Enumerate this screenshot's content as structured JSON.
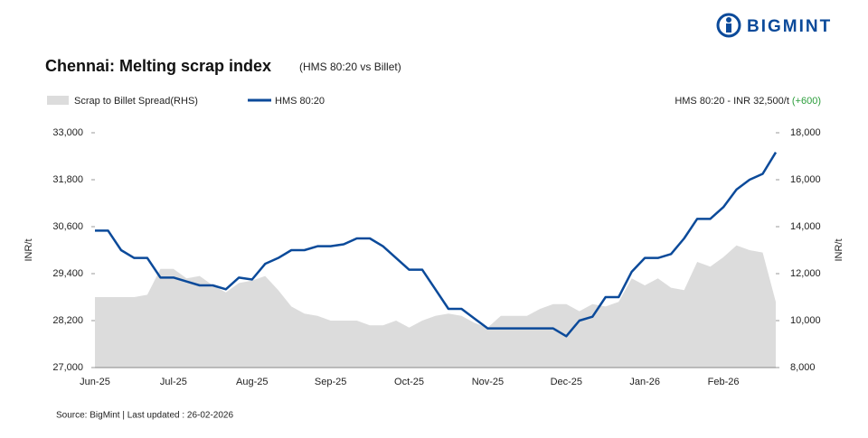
{
  "brand": "BIGMINT",
  "chart_data": {
    "type": "line",
    "title": "Chennai: Melting scrap index",
    "subtitle": "(HMS 80:20 vs Billet)",
    "annotation": "HMS 80:20 - INR 32,500/t",
    "annotation_change": "(+600)",
    "y_label": "INR/t",
    "y2_label": "INR/t",
    "source": "Source: BigMint | Last updated : 26-02-2026",
    "categories": [
      "Jun-25",
      null,
      null,
      null,
      null,
      null,
      "Jul-25",
      null,
      null,
      null,
      null,
      null,
      "Aug-25",
      null,
      null,
      null,
      null,
      null,
      "Sep-25",
      null,
      null,
      null,
      null,
      null,
      "Oct-25",
      null,
      null,
      null,
      null,
      null,
      "Nov-25",
      null,
      null,
      null,
      null,
      null,
      "Dec-25",
      null,
      null,
      null,
      null,
      null,
      "Jan-26",
      null,
      null,
      null,
      null,
      null,
      "Feb-26",
      null,
      null,
      null,
      null
    ],
    "series": [
      {
        "name": "Scrap to Billet Spread(RHS)",
        "color": "#dcdcdc",
        "axis": "y2",
        "kind": "area",
        "values": [
          11000,
          11000,
          11000,
          11000,
          11100,
          12200,
          12200,
          11800,
          11900,
          11500,
          11200,
          11600,
          11700,
          11900,
          11300,
          10600,
          10300,
          10200,
          10000,
          10000,
          10000,
          9800,
          9800,
          10000,
          9700,
          10000,
          10200,
          10300,
          10200,
          9900,
          9700,
          10200,
          10200,
          10200,
          10500,
          10700,
          10700,
          10400,
          10700,
          10600,
          10800,
          11800,
          11500,
          11800,
          11400,
          11300,
          12500,
          12300,
          12700,
          13200,
          13000,
          12900,
          10800
        ]
      },
      {
        "name": "HMS 80:20",
        "color": "#0b4a9a",
        "kind": "line",
        "values": [
          30500,
          30500,
          30000,
          29800,
          29800,
          29300,
          29300,
          29200,
          29100,
          29100,
          29000,
          29300,
          29250,
          29650,
          29800,
          30000,
          30000,
          30100,
          30100,
          30150,
          30300,
          30300,
          30100,
          29800,
          29500,
          29500,
          29000,
          28500,
          28500,
          28250,
          28000,
          28000,
          28000,
          28000,
          28000,
          28000,
          27800,
          28200,
          28300,
          28800,
          28800,
          29450,
          29800,
          29800,
          29900,
          30300,
          30800,
          30800,
          31100,
          31550,
          31800,
          31950,
          32500
        ]
      }
    ],
    "ylim": [
      27000,
      33000
    ],
    "yticks": [
      {
        "value": 27000,
        "label": "27,000"
      },
      {
        "value": 28200,
        "label": "28,200"
      },
      {
        "value": 29400,
        "label": "29,400"
      },
      {
        "value": 30600,
        "label": "30,600"
      },
      {
        "value": 31800,
        "label": "31,800"
      },
      {
        "value": 33000,
        "label": "33,000"
      }
    ],
    "y2lim": [
      8000,
      18000
    ],
    "y2ticks": [
      {
        "value": 8000,
        "label": "8,000"
      },
      {
        "value": 10000,
        "label": "10,000"
      },
      {
        "value": 12000,
        "label": "12,000"
      },
      {
        "value": 14000,
        "label": "14,000"
      },
      {
        "value": 16000,
        "label": "16,000"
      },
      {
        "value": 18000,
        "label": "18,000"
      }
    ]
  }
}
